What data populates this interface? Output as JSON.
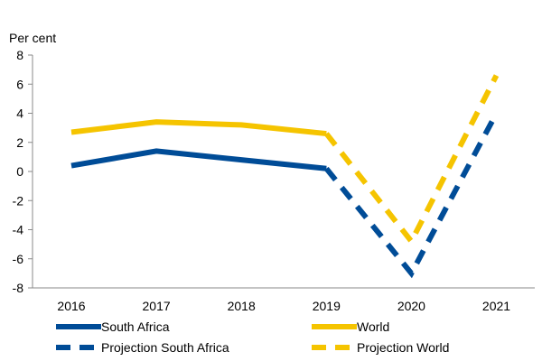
{
  "chart_data": {
    "type": "line",
    "ylabel": "Per cent",
    "categories": [
      "2016",
      "2017",
      "2018",
      "2019",
      "2020",
      "2021"
    ],
    "ylim": [
      -8,
      8
    ],
    "yticks": [
      8,
      6,
      4,
      2,
      0,
      -2,
      -4,
      -6,
      -8
    ],
    "grid": false,
    "legend_position": "bottom",
    "series": [
      {
        "name": "South Africa",
        "color": "#004C97",
        "style": "solid",
        "values": [
          0.4,
          1.4,
          0.8,
          0.2,
          null,
          null
        ]
      },
      {
        "name": "World",
        "color": "#F5C400",
        "style": "solid",
        "values": [
          2.7,
          3.4,
          3.2,
          2.6,
          null,
          null
        ]
      },
      {
        "name": "Projection South Africa",
        "color": "#004C97",
        "style": "dashed",
        "values": [
          null,
          null,
          null,
          0.2,
          -7.0,
          4.0
        ]
      },
      {
        "name": "Projection World",
        "color": "#F5C400",
        "style": "dashed",
        "values": [
          null,
          null,
          null,
          2.6,
          -4.8,
          6.6
        ]
      }
    ]
  }
}
